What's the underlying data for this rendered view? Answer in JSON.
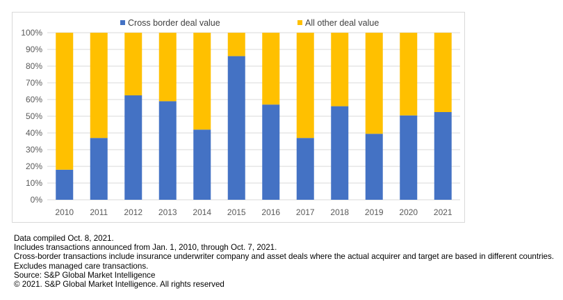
{
  "chart_data": {
    "type": "bar",
    "stacked": true,
    "percent": true,
    "categories": [
      "2010",
      "2011",
      "2012",
      "2013",
      "2014",
      "2015",
      "2016",
      "2017",
      "2018",
      "2019",
      "2020",
      "2021"
    ],
    "series": [
      {
        "name": "Cross border deal value",
        "color": "#4472c4",
        "values": [
          18,
          37,
          62.5,
          59,
          42,
          86,
          57,
          37,
          56,
          39.5,
          50.5,
          52.5
        ]
      },
      {
        "name": "All other deal value",
        "color": "#ffc000",
        "values": [
          82,
          63,
          37.5,
          41,
          58,
          14,
          43,
          63,
          44,
          60.5,
          49.5,
          47.5
        ]
      }
    ],
    "y_ticks": [
      "0%",
      "10%",
      "20%",
      "30%",
      "40%",
      "50%",
      "60%",
      "70%",
      "80%",
      "90%",
      "100%"
    ],
    "ylim": [
      0,
      100
    ],
    "grid": true,
    "legend_position": "top",
    "title": "",
    "xlabel": "",
    "ylabel": ""
  },
  "notes": [
    "Data compiled Oct. 8, 2021.",
    "Includes transactions announced from Jan. 1, 2010, through Oct. 7, 2021.",
    "Cross-border transactions include insurance underwriter company and asset deals where the actual acquirer and target are based in different countries. Excludes managed care transactions.",
    "Source: S&P Global Market Intelligence",
    "© 2021. S&P Global Market Intelligence. All rights reserved"
  ]
}
